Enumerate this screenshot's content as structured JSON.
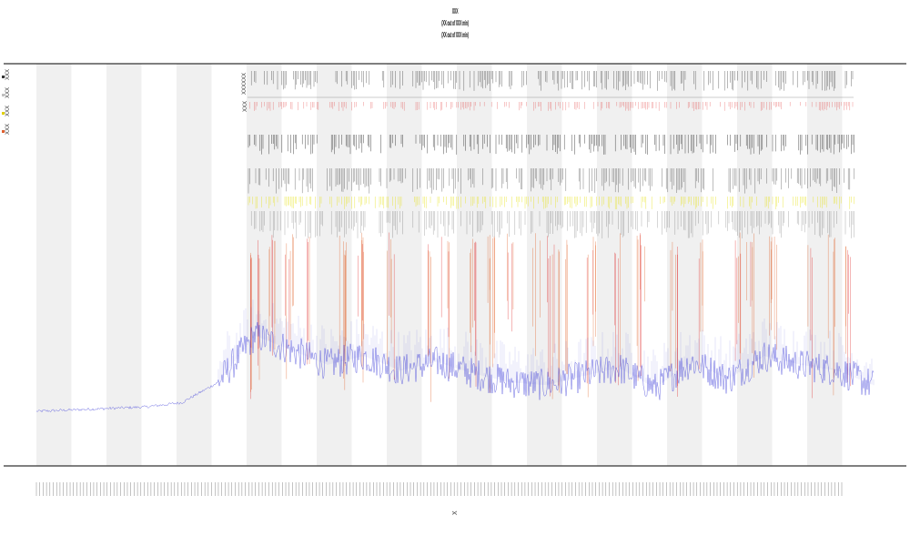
{
  "title": {
    "lines": [
      "XXX",
      "(XX out of XXX min)",
      "(XX out of XXX min)"
    ]
  },
  "legend": {
    "items": [
      {
        "label": "XXX",
        "color": "#333333"
      },
      {
        "label": "XXX",
        "color": "#c0c0c0"
      },
      {
        "label": "XXX",
        "color": "#e0d000"
      },
      {
        "label": "XXX",
        "color": "#e06030"
      },
      {
        "label": "",
        "color": "#555555"
      }
    ]
  },
  "tracks": {
    "labels": [
      "XXXXXX",
      "XXX"
    ]
  },
  "x_axis_label": "X",
  "colors": {
    "background": "#ffffff",
    "band": "#f0f0f0",
    "blue": "#3a3ad8",
    "orange": "#e05a1e",
    "red": "#e02020",
    "yellow": "#e6e000",
    "black": "#111111",
    "axis": "#333333"
  },
  "chart_data": {
    "type": "line",
    "title": "XXX",
    "xlabel": "X",
    "ylabel": "",
    "grid": false,
    "legend_position": "top-left",
    "band_count": 12,
    "tick_count": 240,
    "series": [
      {
        "name": "XXX",
        "role": "baseline-signal",
        "color": "#3a3ad8",
        "x": [
          0,
          40,
          80,
          120,
          160,
          200,
          240,
          280,
          320,
          360,
          400,
          440,
          480,
          520,
          560,
          600,
          640,
          680,
          720,
          760,
          800,
          840,
          880,
          920
        ],
        "values": [
          1.0,
          1.05,
          1.1,
          1.15,
          1.3,
          2.0,
          3.6,
          3.1,
          2.6,
          2.9,
          2.4,
          2.7,
          2.3,
          2.0,
          1.9,
          2.2,
          2.5,
          1.8,
          2.7,
          2.1,
          2.9,
          2.6,
          2.4,
          1.9
        ]
      },
      {
        "name": "XXX",
        "role": "event-spikes",
        "color": "#e05a1e"
      }
    ]
  }
}
